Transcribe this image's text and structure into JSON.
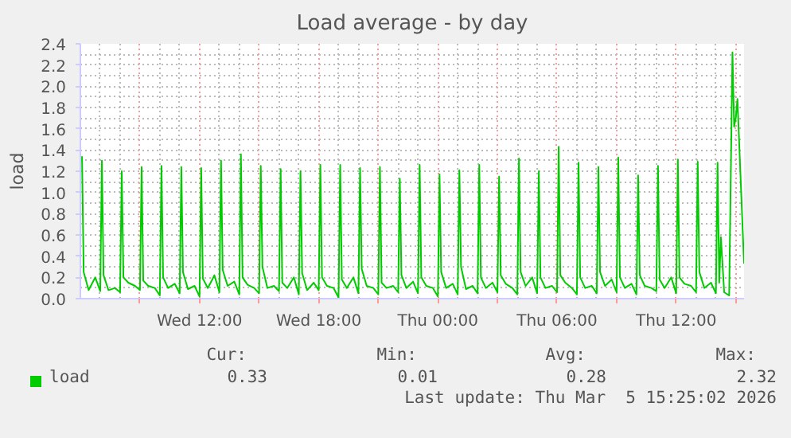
{
  "chart_data": {
    "type": "line",
    "title": "Load average - by day",
    "ylabel": "load",
    "xlim": [
      "2026-03-04T06:00",
      "2026-03-05T15:25"
    ],
    "ylim": [
      0,
      2.4
    ],
    "xticks": [
      {
        "value": "2026-03-04T09:00",
        "label": null
      },
      {
        "value": "2026-03-04T12:00",
        "label": "Wed 12:00"
      },
      {
        "value": "2026-03-04T15:00",
        "label": null
      },
      {
        "value": "2026-03-04T18:00",
        "label": "Wed 18:00"
      },
      {
        "value": "2026-03-04T21:00",
        "label": null
      },
      {
        "value": "2026-03-05T00:00",
        "label": "Thu 00:00"
      },
      {
        "value": "2026-03-05T03:00",
        "label": null
      },
      {
        "value": "2026-03-05T06:00",
        "label": "Thu 06:00"
      },
      {
        "value": "2026-03-05T09:00",
        "label": null
      },
      {
        "value": "2026-03-05T12:00",
        "label": "Thu 12:00"
      },
      {
        "value": "2026-03-05T15:00",
        "label": null
      }
    ],
    "yticks": [
      {
        "value": 0,
        "label": "0.0"
      },
      0.2,
      0.4,
      0.6,
      0.8,
      {
        "value": 1,
        "label": "1.0"
      },
      1.2,
      1.4,
      1.6,
      1.8,
      {
        "value": 2,
        "label": "2.0"
      },
      2.2,
      2.4
    ],
    "grid": true,
    "legend": "bottom",
    "marker": "none",
    "line_style": "solid",
    "series": [
      {
        "name": "load",
        "color": "#00cc00",
        "x": [
          "2026-03-04T06:05",
          "2026-03-04T06:10",
          "2026-03-04T06:25",
          "2026-03-04T06:45",
          "2026-03-04T07:00",
          "2026-03-04T07:05",
          "2026-03-04T07:10",
          "2026-03-04T07:25",
          "2026-03-04T07:45",
          "2026-03-04T08:00",
          "2026-03-04T08:05",
          "2026-03-04T08:10",
          "2026-03-04T08:25",
          "2026-03-04T08:45",
          "2026-03-04T09:00",
          "2026-03-04T09:05",
          "2026-03-04T09:10",
          "2026-03-04T09:25",
          "2026-03-04T09:45",
          "2026-03-04T10:00",
          "2026-03-04T10:05",
          "2026-03-04T10:10",
          "2026-03-04T10:25",
          "2026-03-04T10:45",
          "2026-03-04T11:00",
          "2026-03-04T11:05",
          "2026-03-04T11:10",
          "2026-03-04T11:25",
          "2026-03-04T11:45",
          "2026-03-04T12:00",
          "2026-03-04T12:05",
          "2026-03-04T12:10",
          "2026-03-04T12:25",
          "2026-03-04T12:45",
          "2026-03-04T13:00",
          "2026-03-04T13:05",
          "2026-03-04T13:10",
          "2026-03-04T13:25",
          "2026-03-04T13:45",
          "2026-03-04T14:00",
          "2026-03-04T14:05",
          "2026-03-04T14:10",
          "2026-03-04T14:25",
          "2026-03-04T14:45",
          "2026-03-04T15:00",
          "2026-03-04T15:05",
          "2026-03-04T15:10",
          "2026-03-04T15:25",
          "2026-03-04T15:45",
          "2026-03-04T16:00",
          "2026-03-04T16:05",
          "2026-03-04T16:10",
          "2026-03-04T16:25",
          "2026-03-04T16:45",
          "2026-03-04T17:00",
          "2026-03-04T17:05",
          "2026-03-04T17:10",
          "2026-03-04T17:25",
          "2026-03-04T17:45",
          "2026-03-04T18:00",
          "2026-03-04T18:05",
          "2026-03-04T18:10",
          "2026-03-04T18:25",
          "2026-03-04T18:45",
          "2026-03-04T19:00",
          "2026-03-04T19:05",
          "2026-03-04T19:10",
          "2026-03-04T19:25",
          "2026-03-04T19:45",
          "2026-03-04T20:00",
          "2026-03-04T20:05",
          "2026-03-04T20:10",
          "2026-03-04T20:25",
          "2026-03-04T20:45",
          "2026-03-04T21:00",
          "2026-03-04T21:05",
          "2026-03-04T21:10",
          "2026-03-04T21:25",
          "2026-03-04T21:45",
          "2026-03-04T22:00",
          "2026-03-04T22:05",
          "2026-03-04T22:10",
          "2026-03-04T22:25",
          "2026-03-04T22:45",
          "2026-03-04T23:00",
          "2026-03-04T23:05",
          "2026-03-04T23:10",
          "2026-03-04T23:25",
          "2026-03-04T23:45",
          "2026-03-05T00:00",
          "2026-03-05T00:05",
          "2026-03-05T00:10",
          "2026-03-05T00:25",
          "2026-03-05T00:45",
          "2026-03-05T01:00",
          "2026-03-05T01:05",
          "2026-03-05T01:10",
          "2026-03-05T01:25",
          "2026-03-05T01:45",
          "2026-03-05T02:00",
          "2026-03-05T02:05",
          "2026-03-05T02:10",
          "2026-03-05T02:25",
          "2026-03-05T02:45",
          "2026-03-05T03:00",
          "2026-03-05T03:05",
          "2026-03-05T03:10",
          "2026-03-05T03:25",
          "2026-03-05T03:45",
          "2026-03-05T04:00",
          "2026-03-05T04:05",
          "2026-03-05T04:10",
          "2026-03-05T04:25",
          "2026-03-05T04:45",
          "2026-03-05T05:00",
          "2026-03-05T05:05",
          "2026-03-05T05:10",
          "2026-03-05T05:25",
          "2026-03-05T05:45",
          "2026-03-05T06:00",
          "2026-03-05T06:05",
          "2026-03-05T06:10",
          "2026-03-05T06:25",
          "2026-03-05T06:45",
          "2026-03-05T07:00",
          "2026-03-05T07:05",
          "2026-03-05T07:10",
          "2026-03-05T07:25",
          "2026-03-05T07:45",
          "2026-03-05T08:00",
          "2026-03-05T08:05",
          "2026-03-05T08:10",
          "2026-03-05T08:25",
          "2026-03-05T08:45",
          "2026-03-05T09:00",
          "2026-03-05T09:05",
          "2026-03-05T09:10",
          "2026-03-05T09:25",
          "2026-03-05T09:45",
          "2026-03-05T10:00",
          "2026-03-05T10:05",
          "2026-03-05T10:10",
          "2026-03-05T10:25",
          "2026-03-05T10:45",
          "2026-03-05T11:00",
          "2026-03-05T11:05",
          "2026-03-05T11:10",
          "2026-03-05T11:25",
          "2026-03-05T11:45",
          "2026-03-05T12:00",
          "2026-03-05T12:05",
          "2026-03-05T12:10",
          "2026-03-05T12:25",
          "2026-03-05T12:45",
          "2026-03-05T13:00",
          "2026-03-05T13:05",
          "2026-03-05T13:10",
          "2026-03-05T13:25",
          "2026-03-05T13:45",
          "2026-03-05T14:00",
          "2026-03-05T14:05",
          "2026-03-05T14:10",
          "2026-03-05T14:15",
          "2026-03-05T14:25",
          "2026-03-05T14:40",
          "2026-03-05T14:50",
          "2026-03-05T14:55",
          "2026-03-05T15:00",
          "2026-03-05T15:05",
          "2026-03-05T15:25"
        ],
        "values": [
          1.34,
          0.25,
          0.08,
          0.2,
          0.07,
          1.3,
          0.22,
          0.08,
          0.1,
          0.06,
          1.2,
          0.2,
          0.15,
          0.12,
          0.08,
          1.24,
          0.17,
          0.12,
          0.1,
          0.03,
          1.25,
          0.2,
          0.1,
          0.14,
          0.05,
          1.24,
          0.25,
          0.09,
          0.12,
          0.02,
          1.23,
          0.19,
          0.1,
          0.22,
          0.06,
          1.3,
          0.27,
          0.12,
          0.16,
          0.04,
          1.36,
          0.2,
          0.13,
          0.1,
          0.05,
          1.25,
          0.3,
          0.1,
          0.12,
          0.07,
          1.22,
          0.15,
          0.1,
          0.2,
          0.04,
          1.2,
          0.24,
          0.08,
          0.15,
          0.08,
          1.26,
          0.2,
          0.12,
          0.1,
          0.01,
          1.26,
          0.18,
          0.1,
          0.2,
          0.05,
          1.23,
          0.28,
          0.12,
          0.1,
          0.04,
          1.24,
          0.15,
          0.1,
          0.12,
          0.06,
          1.13,
          0.22,
          0.1,
          0.16,
          0.05,
          1.26,
          0.2,
          0.12,
          0.1,
          0.02,
          1.17,
          0.25,
          0.1,
          0.14,
          0.04,
          1.21,
          0.3,
          0.09,
          0.12,
          0.05,
          1.26,
          0.2,
          0.1,
          0.15,
          0.06,
          1.15,
          0.22,
          0.14,
          0.1,
          0.04,
          1.32,
          0.25,
          0.12,
          0.2,
          0.05,
          1.2,
          0.2,
          0.1,
          0.12,
          0.06,
          1.43,
          0.22,
          0.15,
          0.1,
          0.04,
          1.28,
          0.2,
          0.1,
          0.12,
          0.05,
          1.24,
          0.25,
          0.12,
          0.18,
          0.06,
          1.33,
          0.2,
          0.1,
          0.14,
          0.04,
          1.16,
          0.22,
          0.12,
          0.1,
          0.07,
          1.25,
          0.18,
          0.1,
          0.2,
          0.05,
          1.31,
          0.2,
          0.14,
          0.12,
          0.06,
          1.29,
          0.25,
          0.1,
          0.15,
          0.05,
          1.28,
          0.15,
          0.58,
          0.06,
          0.03,
          2.32,
          1.62,
          1.7,
          1.88,
          0.33
        ]
      }
    ],
    "annotations": [
      "Cur:",
      "0.33",
      "Min:",
      "0.01",
      "Avg:",
      "0.28",
      "Max:",
      "2.32",
      "Last update: Thu Mar  5 15:25:02 2026"
    ]
  }
}
